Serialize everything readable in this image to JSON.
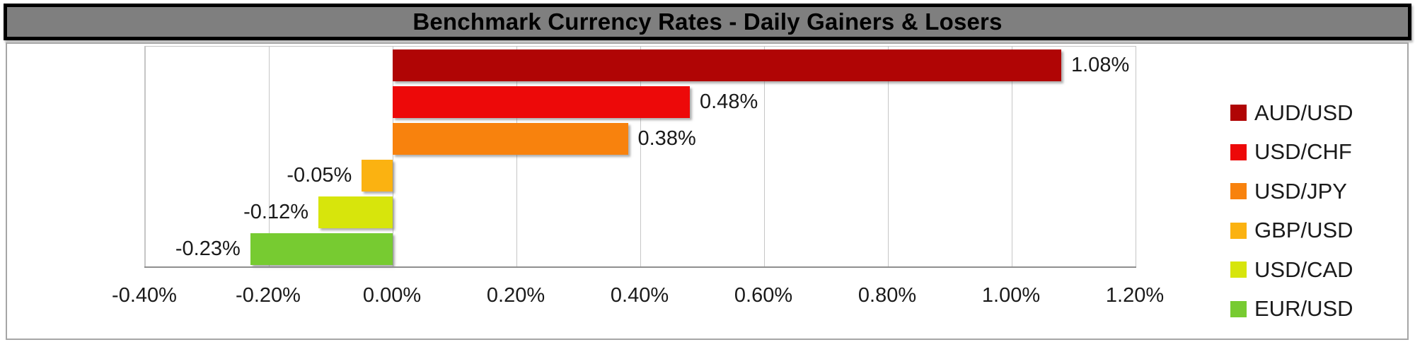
{
  "title": "Benchmark Currency Rates - Daily Gainers & Losers",
  "chart_data": {
    "type": "bar",
    "orientation": "horizontal",
    "title": "Benchmark Currency Rates - Daily Gainers & Losers",
    "categories": [
      "AUD/USD",
      "USD/CHF",
      "USD/JPY",
      "GBP/USD",
      "USD/CAD",
      "EUR/USD"
    ],
    "values": [
      1.08,
      0.48,
      0.38,
      -0.05,
      -0.12,
      -0.23
    ],
    "value_labels": [
      "1.08%",
      "0.48%",
      "0.38%",
      "-0.05%",
      "-0.12%",
      "-0.23%"
    ],
    "bar_colors": [
      "#B00505",
      "#ED0909",
      "#F8820D",
      "#FBB211",
      "#D7E50C",
      "#77CB31"
    ],
    "xlim": [
      -0.4,
      1.2
    ],
    "x_tick_values": [
      -0.4,
      -0.2,
      0,
      0.2,
      0.4,
      0.6,
      0.8,
      1.0,
      1.2
    ],
    "x_tick_labels": [
      "-0.40%",
      "-0.20%",
      "0.00%",
      "0.20%",
      "0.40%",
      "0.60%",
      "0.80%",
      "1.00%",
      "1.20%"
    ],
    "grid": true,
    "legend_position": "right",
    "legend": [
      {
        "label": "AUD/USD",
        "color": "#B00505"
      },
      {
        "label": "USD/CHF",
        "color": "#ED0909"
      },
      {
        "label": "USD/JPY",
        "color": "#F8820D"
      },
      {
        "label": "GBP/USD",
        "color": "#FBB211"
      },
      {
        "label": "USD/CAD",
        "color": "#D7E50C"
      },
      {
        "label": "EUR/USD",
        "color": "#77CB31"
      }
    ]
  },
  "styles": {
    "title_bg": "#7F7F7F",
    "title_text": "#000000",
    "panel_border": "#A6A6A6",
    "gridline": "#C6C6C6",
    "axis_line": "#8F8F8F",
    "label_color": "#1A1A1A"
  }
}
